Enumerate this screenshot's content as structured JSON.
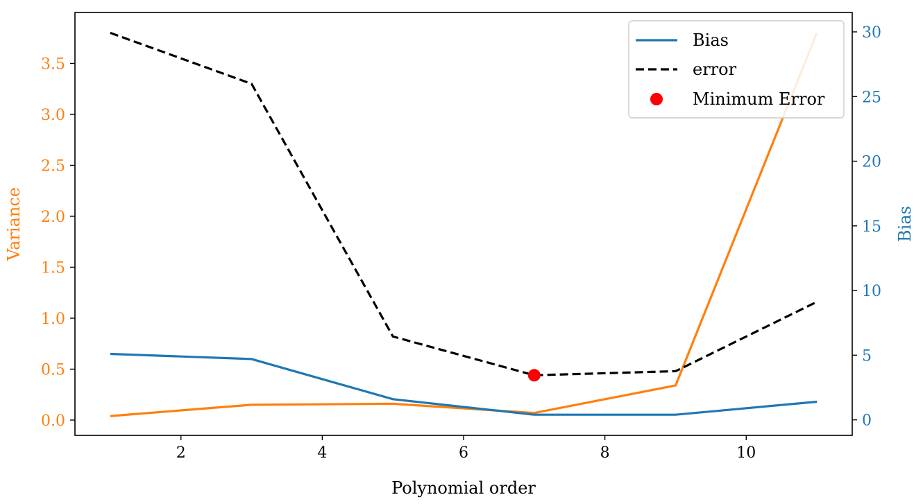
{
  "chart_data": {
    "type": "line",
    "x": [
      1,
      3,
      5,
      7,
      9,
      11
    ],
    "xlabel": "Polynomial order",
    "xlim": [
      0.5,
      11.5
    ],
    "xticks": [
      2,
      4,
      6,
      8,
      10
    ],
    "left_axis": {
      "label": "Variance",
      "color": "#ff7f0e",
      "ylim": [
        -0.15,
        4.0
      ],
      "ticks": [
        0.0,
        0.5,
        1.0,
        1.5,
        2.0,
        2.5,
        3.0,
        3.5
      ],
      "tick_labels": [
        "0.0",
        "0.5",
        "1.0",
        "1.5",
        "2.0",
        "2.5",
        "3.0",
        "3.5"
      ]
    },
    "right_axis": {
      "label": "Bias",
      "color": "#1f77b4",
      "ylim": [
        -1.2,
        31.5
      ],
      "ticks": [
        0,
        5,
        10,
        15,
        20,
        25,
        30
      ],
      "tick_labels": [
        "0",
        "5",
        "10",
        "15",
        "20",
        "25",
        "30"
      ]
    },
    "series": [
      {
        "name": "Variance",
        "axis": "left",
        "color": "#ff7f0e",
        "style": "solid",
        "values": [
          0.04,
          0.15,
          0.16,
          0.07,
          0.34,
          3.8
        ]
      },
      {
        "name": "Bias",
        "axis": "right",
        "color": "#1f77b4",
        "style": "solid",
        "values": [
          5.1,
          4.7,
          1.6,
          0.4,
          0.4,
          1.4
        ]
      },
      {
        "name": "error",
        "axis": "left",
        "color": "#000000",
        "style": "dashed",
        "values": [
          3.8,
          3.3,
          0.82,
          0.44,
          0.48,
          1.16
        ]
      }
    ],
    "minimum_error": {
      "x": 7,
      "y": 0.44,
      "axis": "left",
      "color": "#ff0000"
    },
    "legend": {
      "placement": "top-right",
      "entries": [
        {
          "label": "Bias",
          "kind": "line",
          "color": "#1f77b4"
        },
        {
          "label": "error",
          "kind": "dashed",
          "color": "#000000"
        },
        {
          "label": "Minimum Error",
          "kind": "marker",
          "color": "#ff0000"
        }
      ]
    }
  }
}
